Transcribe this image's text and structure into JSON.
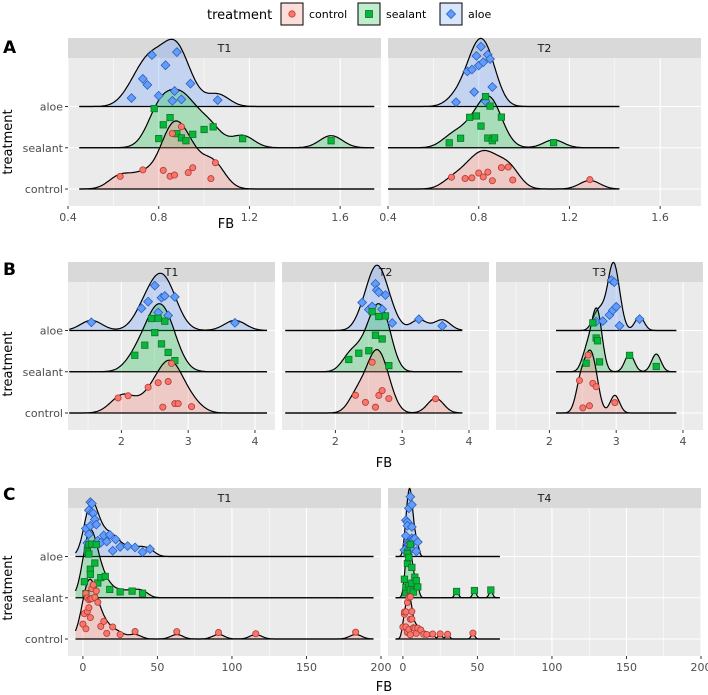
{
  "legend": {
    "title": "treatment",
    "entries": [
      {
        "label": "control",
        "color": "#F8766D",
        "fill": "#F8766D",
        "shape": "circle"
      },
      {
        "label": "sealant",
        "color": "#00BA38",
        "fill": "#00BA38",
        "shape": "square"
      },
      {
        "label": "aloe",
        "color": "#619CFF",
        "fill": "#619CFF",
        "shape": "diamond"
      }
    ]
  },
  "chart_data": [
    {
      "type": "ridgeline",
      "tag": "A",
      "xlabel": "FB",
      "ylabel": "treatment",
      "y_categories": [
        "control",
        "sealant",
        "aloe"
      ],
      "xlim": [
        0.4,
        1.78
      ],
      "xticks": [
        0.4,
        0.8,
        1.2,
        1.6
      ],
      "xtick_labels": [
        "0.4",
        "0.8",
        "1.2",
        "1.6"
      ],
      "panels": [
        {
          "facet": "T1",
          "range": [
            0.45,
            1.75
          ],
          "bw": 0.05,
          "series": {
            "control": [
              0.63,
              0.73,
              0.82,
              0.85,
              0.86,
              0.87,
              0.9,
              0.93,
              0.95,
              1.03,
              1.05
            ],
            "sealant": [
              0.78,
              0.8,
              0.82,
              0.85,
              0.88,
              0.9,
              0.92,
              0.95,
              1.0,
              1.04,
              1.17,
              1.56
            ],
            "aloe": [
              0.68,
              0.73,
              0.75,
              0.77,
              0.8,
              0.83,
              0.86,
              0.87,
              0.88,
              0.9,
              0.94,
              1.06
            ]
          }
        },
        {
          "facet": "T2",
          "range": [
            0.4,
            1.42
          ],
          "bw": 0.045,
          "series": {
            "control": [
              0.68,
              0.74,
              0.77,
              0.8,
              0.82,
              0.84,
              0.86,
              0.9,
              0.93,
              0.95,
              1.29
            ],
            "sealant": [
              0.67,
              0.72,
              0.76,
              0.79,
              0.81,
              0.83,
              0.84,
              0.85,
              0.86,
              0.87,
              0.9,
              1.13
            ],
            "aloe": [
              0.7,
              0.75,
              0.77,
              0.78,
              0.79,
              0.8,
              0.81,
              0.82,
              0.83,
              0.84,
              0.85,
              0.86
            ]
          }
        }
      ]
    },
    {
      "type": "ridgeline",
      "tag": "B",
      "xlabel": "FB",
      "ylabel": "treatment",
      "y_categories": [
        "control",
        "sealant",
        "aloe"
      ],
      "xlim": [
        1.2,
        4.3
      ],
      "xticks": [
        2,
        3,
        4
      ],
      "xtick_labels": [
        "2",
        "3",
        "4"
      ],
      "panels": [
        {
          "facet": "T1",
          "range": [
            1.22,
            4.18
          ],
          "bw": 0.16,
          "series": {
            "control": [
              1.95,
              2.1,
              2.4,
              2.55,
              2.62,
              2.7,
              2.75,
              2.8,
              2.85,
              3.05
            ],
            "sealant": [
              2.2,
              2.35,
              2.45,
              2.5,
              2.55,
              2.6,
              2.65,
              2.7,
              2.8
            ],
            "aloe": [
              1.55,
              2.3,
              2.4,
              2.5,
              2.55,
              2.6,
              2.65,
              2.7,
              2.8,
              3.7
            ]
          }
        },
        {
          "facet": "T2",
          "range": [
            1.25,
            3.9
          ],
          "bw": 0.12,
          "series": {
            "control": [
              2.3,
              2.45,
              2.55,
              2.6,
              2.65,
              2.7,
              2.8,
              3.5
            ],
            "sealant": [
              2.2,
              2.35,
              2.5,
              2.55,
              2.6,
              2.65,
              2.7,
              2.75,
              2.8
            ],
            "aloe": [
              2.4,
              2.5,
              2.55,
              2.6,
              2.62,
              2.65,
              2.7,
              2.75,
              2.85,
              3.25,
              3.6
            ]
          }
        },
        {
          "facet": "T3",
          "range": [
            2.1,
            3.9
          ],
          "bw": 0.07,
          "series": {
            "control": [
              2.45,
              2.5,
              2.58,
              2.6,
              2.65,
              2.7,
              2.98
            ],
            "sealant": [
              2.55,
              2.65,
              2.7,
              2.72,
              2.75,
              3.2,
              3.6
            ],
            "aloe": [
              2.7,
              2.8,
              2.9,
              2.93,
              2.95,
              2.97,
              3.0,
              3.05,
              3.35
            ]
          }
        }
      ]
    },
    {
      "type": "ridgeline",
      "tag": "C",
      "xlabel": "FB",
      "ylabel": "treatment",
      "y_categories": [
        "control",
        "sealant",
        "aloe"
      ],
      "xlim": [
        -10,
        200
      ],
      "xticks": [
        0,
        50,
        100,
        150,
        200
      ],
      "xtick_labels": [
        "0",
        "50",
        "100",
        "150",
        "200"
      ],
      "panels": [
        {
          "facet": "T1",
          "range": [
            -5,
            195
          ],
          "bw": 4,
          "series": {
            "control": [
              0,
              1,
              2,
              2,
              3,
              3,
              4,
              4,
              5,
              5,
              6,
              6,
              7,
              8,
              9,
              10,
              12,
              14,
              16,
              20,
              25,
              35,
              63,
              91,
              116,
              183
            ],
            "sealant": [
              1,
              2,
              3,
              3,
              4,
              4,
              5,
              5,
              6,
              7,
              8,
              9,
              10,
              12,
              15,
              18,
              25,
              33,
              40
            ],
            "aloe": [
              2,
              3,
              4,
              4,
              5,
              5,
              6,
              6,
              7,
              8,
              9,
              10,
              12,
              14,
              16,
              18,
              20,
              22,
              25,
              30,
              35,
              40,
              45
            ]
          }
        },
        {
          "facet": "T4",
          "range": [
            -5,
            65
          ],
          "bw": 1.2,
          "series": {
            "control": [
              0,
              1,
              1,
              2,
              2,
              3,
              3,
              3,
              4,
              4,
              4,
              5,
              5,
              5,
              6,
              6,
              7,
              8,
              9,
              10,
              12,
              14,
              16,
              20,
              25,
              30,
              47
            ],
            "sealant": [
              1,
              2,
              2,
              3,
              3,
              3,
              4,
              4,
              4,
              5,
              5,
              5,
              6,
              6,
              7,
              8,
              9,
              10,
              36,
              48,
              59
            ],
            "aloe": [
              1,
              2,
              2,
              3,
              3,
              3,
              4,
              4,
              4,
              4,
              5,
              5,
              5,
              5,
              6,
              6,
              6,
              7,
              7,
              8,
              9,
              10
            ]
          }
        }
      ]
    }
  ]
}
